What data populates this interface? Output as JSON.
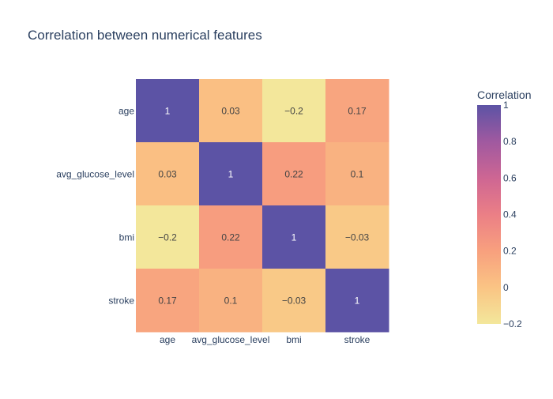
{
  "chart_data": {
    "type": "heatmap",
    "title": "Correlation between numerical features",
    "x_categories": [
      "age",
      "avg_glucose_level",
      "bmi",
      "stroke"
    ],
    "y_categories": [
      "age",
      "avg_glucose_level",
      "bmi",
      "stroke"
    ],
    "values": [
      [
        1,
        0.03,
        -0.2,
        0.17
      ],
      [
        0.03,
        1,
        0.22,
        0.1
      ],
      [
        -0.2,
        0.22,
        1,
        -0.03
      ],
      [
        0.17,
        0.1,
        -0.03,
        1
      ]
    ],
    "cell_labels": [
      [
        "1",
        "0.03",
        "−0.2",
        "0.17"
      ],
      [
        "0.03",
        "1",
        "0.22",
        "0.1"
      ],
      [
        "−0.2",
        "0.22",
        "1",
        "−0.03"
      ],
      [
        "0.17",
        "0.1",
        "−0.03",
        "1"
      ]
    ],
    "colorbar": {
      "title": "Correlation",
      "range": [
        -0.2,
        1
      ],
      "ticks": [
        -0.2,
        0,
        0.2,
        0.4,
        0.6,
        0.8,
        1
      ],
      "tick_labels": [
        "−0.2",
        "0",
        "0.2",
        "0.4",
        "0.6",
        "0.8",
        "1"
      ],
      "colorscale": [
        "#f3e79b",
        "#fac484",
        "#f8a07e",
        "#eb7f86",
        "#ce6693",
        "#a059a0",
        "#5c53a5"
      ]
    }
  }
}
